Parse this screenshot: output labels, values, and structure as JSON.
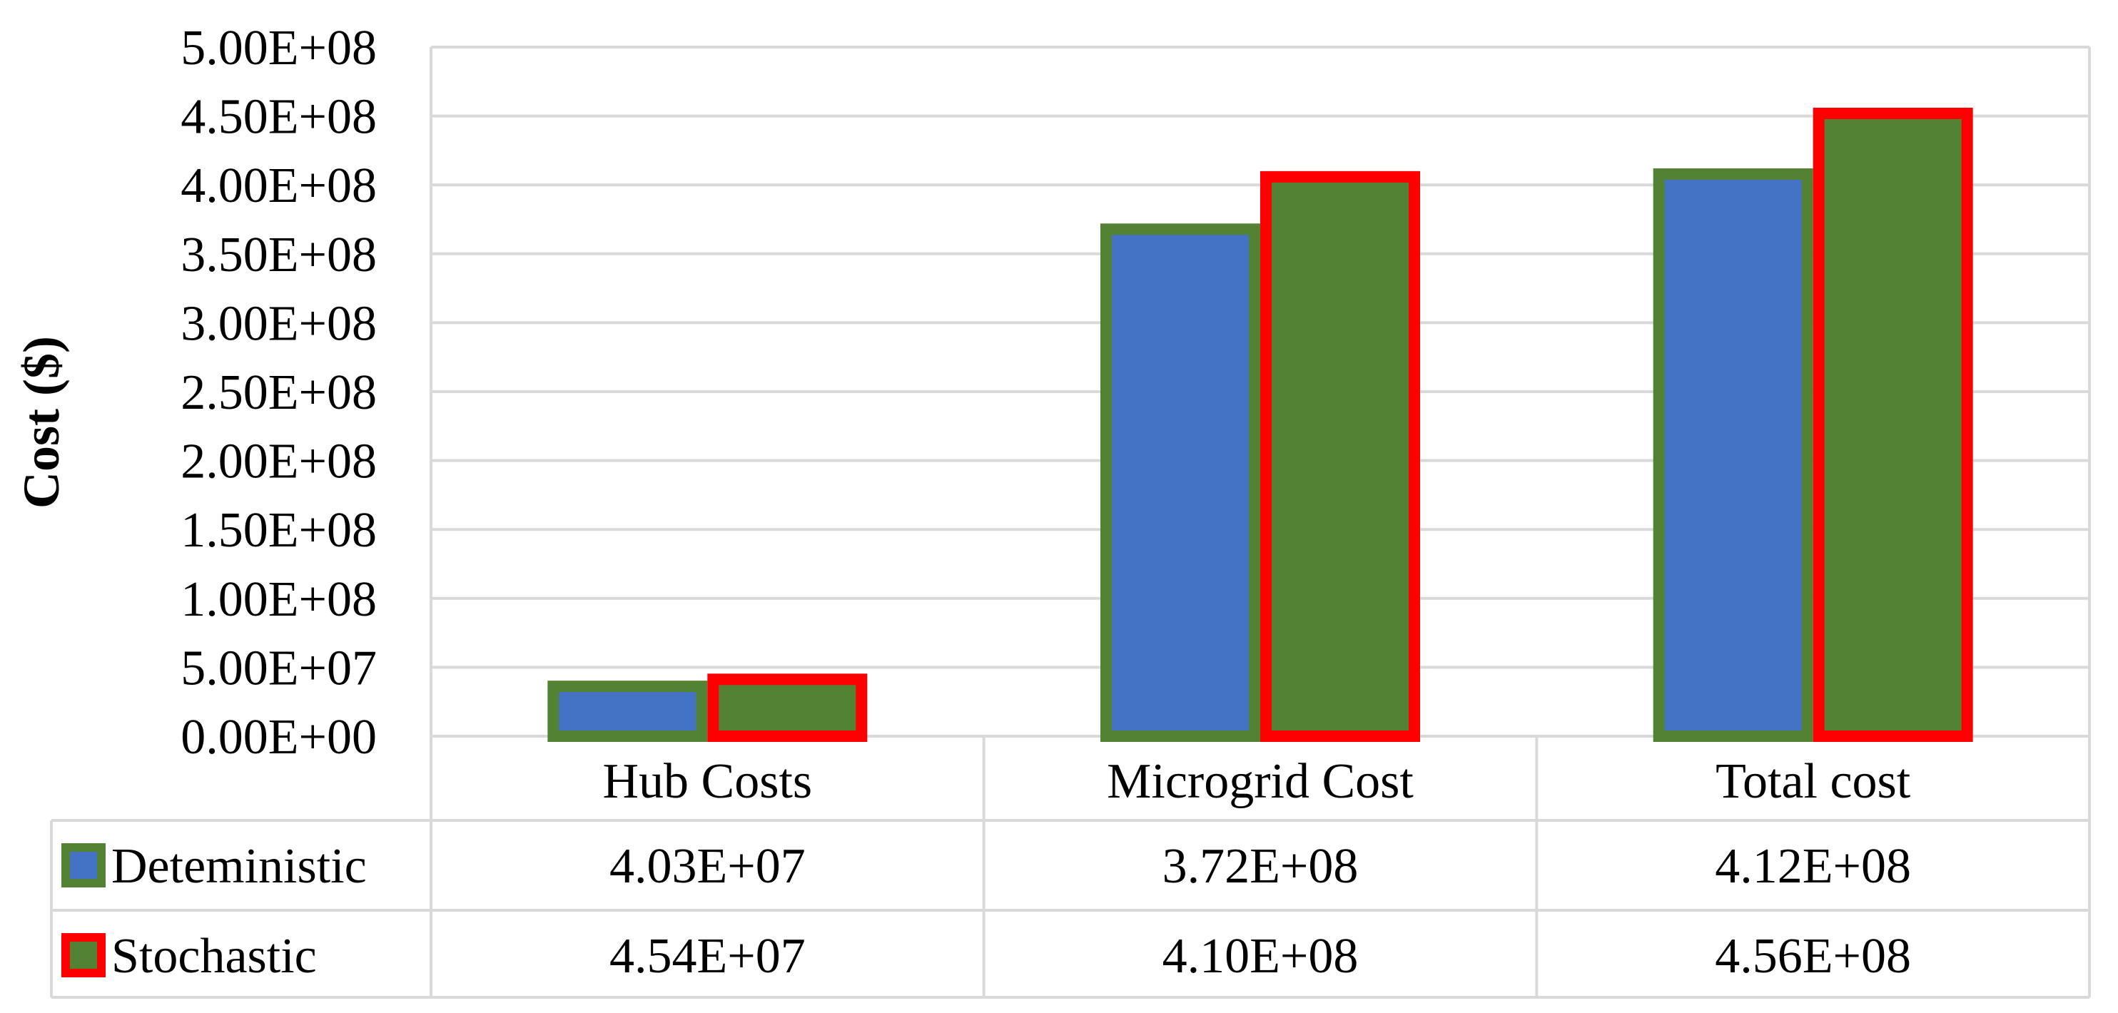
{
  "chart_data": {
    "type": "bar",
    "title": "",
    "xlabel": "",
    "ylabel": "Cost ($)",
    "ylim": [
      0,
      500000000
    ],
    "yticks": [
      0,
      50000000,
      100000000,
      150000000,
      200000000,
      250000000,
      300000000,
      350000000,
      400000000,
      450000000,
      500000000
    ],
    "ytick_labels": [
      "0.00E+00",
      "5.00E+07",
      "1.00E+08",
      "1.50E+08",
      "2.00E+08",
      "2.50E+08",
      "3.00E+08",
      "3.50E+08",
      "4.00E+08",
      "4.50E+08",
      "5.00E+08"
    ],
    "grid": true,
    "categories": [
      "Hub Costs",
      "Microgrid Cost",
      "Total cost"
    ],
    "series": [
      {
        "name": "Deteministic",
        "values": [
          40300000,
          372000000,
          412000000
        ],
        "labels": [
          "4.03E+07",
          "3.72E+08",
          "4.12E+08"
        ],
        "fill": "#4472c4",
        "border": "#548235"
      },
      {
        "name": "Stochastic",
        "values": [
          45400000,
          410000000,
          456000000
        ],
        "labels": [
          "4.54E+07",
          "4.10E+08",
          "4.56E+08"
        ],
        "fill": "#548235",
        "border": "#ff0000"
      }
    ],
    "legend": "data-table"
  }
}
